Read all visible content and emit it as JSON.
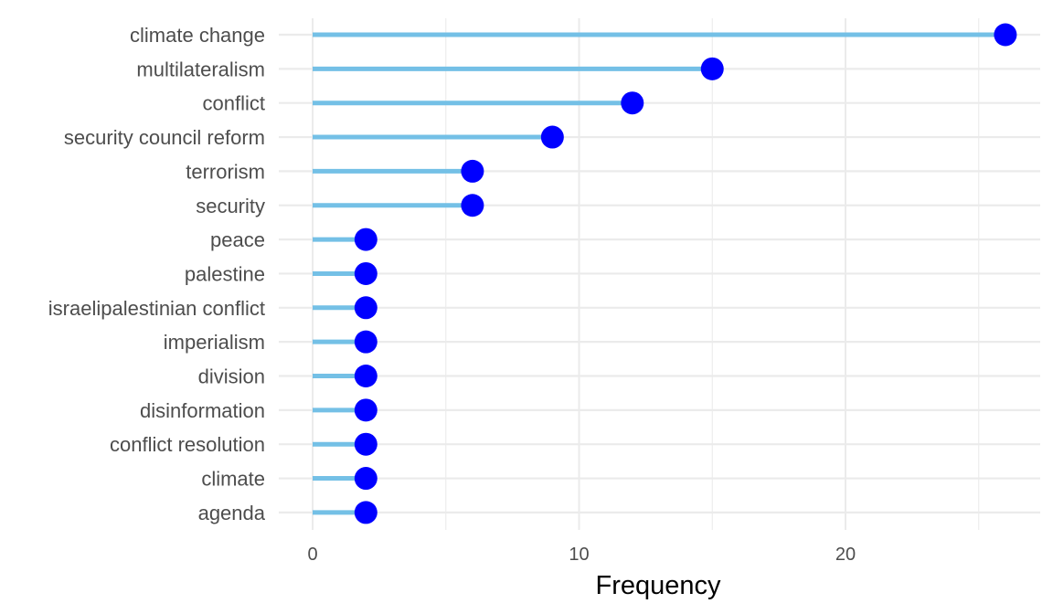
{
  "chart_data": {
    "type": "lollipop",
    "title": "",
    "xlabel": "Frequency",
    "ylabel": "",
    "xlim": [
      0,
      27
    ],
    "x_ticks": [
      0,
      10,
      20
    ],
    "x_minor_ticks": [
      5,
      15,
      25
    ],
    "grid": true,
    "categories": [
      "climate change",
      "multilateralism",
      "conflict",
      "security council reform",
      "terrorism",
      "security",
      "peace",
      "palestine",
      "israelipalestinian conflict",
      "imperialism",
      "division",
      "disinformation",
      "conflict resolution",
      "climate",
      "agenda"
    ],
    "values": [
      26,
      15,
      12,
      9,
      6,
      6,
      2,
      2,
      2,
      2,
      2,
      2,
      2,
      2,
      2
    ]
  },
  "colors": {
    "stem": "#74c0e6",
    "point": "#0000ff",
    "grid": "#ebebeb",
    "text": "#4d4d4d"
  }
}
